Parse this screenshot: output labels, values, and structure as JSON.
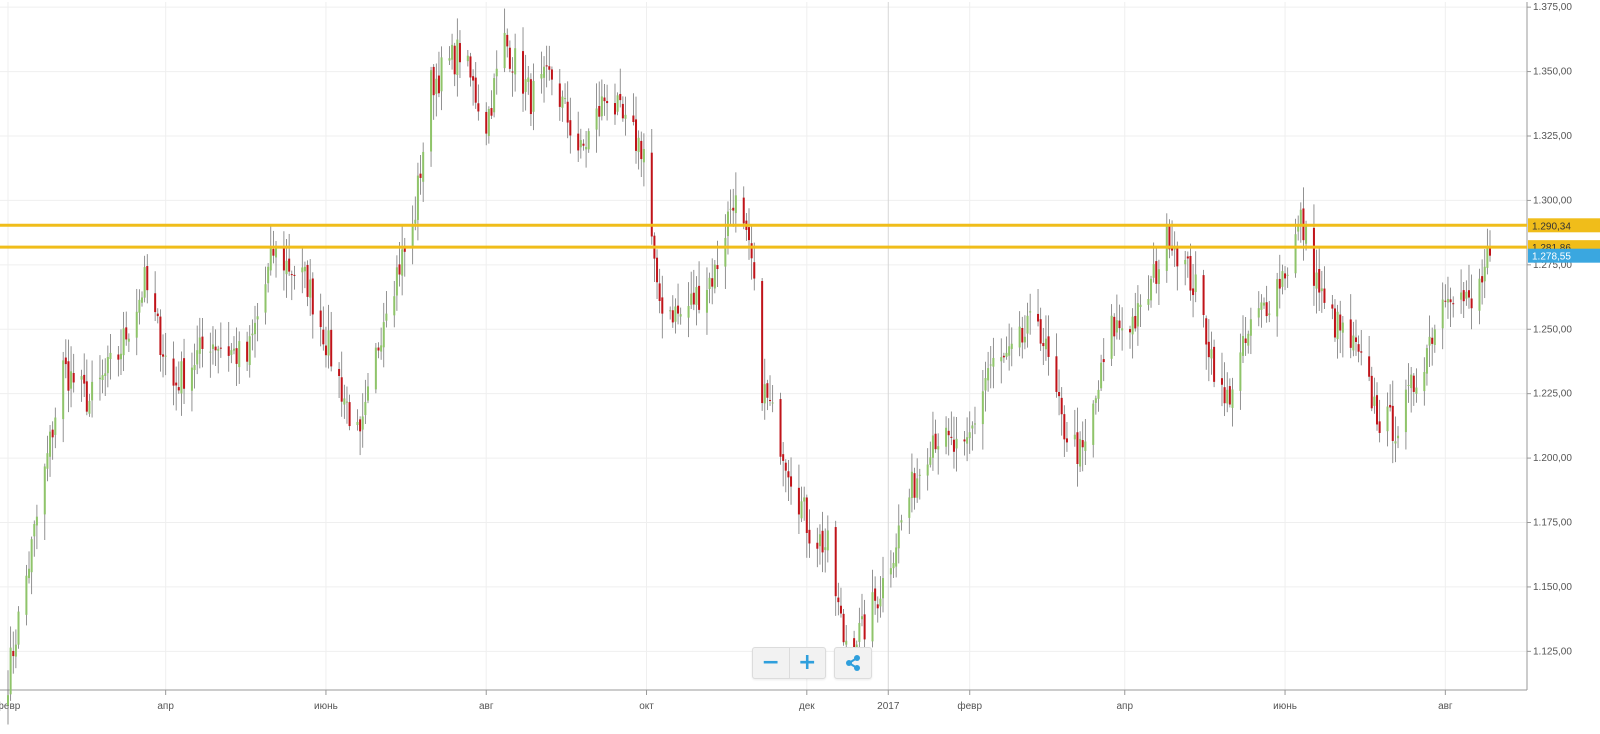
{
  "chart_data": {
    "type": "candlestick",
    "instrument": "",
    "ylim": [
      1110,
      1377
    ],
    "y_ticks": [
      "1.125,00",
      "1.150,00",
      "1.175,00",
      "1.200,00",
      "1.225,00",
      "1.250,00",
      "1.275,00",
      "1.300,00",
      "1.325,00",
      "1.350,00",
      "1.375,00"
    ],
    "y_tick_values": [
      1125,
      1150,
      1175,
      1200,
      1225,
      1250,
      1275,
      1300,
      1325,
      1350,
      1375
    ],
    "x_ticks": [
      "февр",
      "апр",
      "июнь",
      "авг",
      "окт",
      "дек",
      "2017",
      "февр",
      "апр",
      "июнь",
      "авг"
    ],
    "x_range": [
      "2016-02-01",
      "2017-08-18"
    ],
    "grid": true,
    "colors": {
      "up": "#8fc46a",
      "down": "#c0141a",
      "level_line": "#f0bd1a",
      "current_price_tag": "#3aa7e0",
      "grid": "#efefef"
    },
    "horizontal_levels": [
      {
        "value": 1290.34,
        "label": "1.290,34"
      },
      {
        "value": 1281.86,
        "label": "1.281,86"
      }
    ],
    "current_price": {
      "value": 1278.55,
      "label": "1.278,55"
    },
    "close_path": [
      [
        "2016-02-01",
        1115
      ],
      [
        "2016-02-10",
        1165
      ],
      [
        "2016-02-22",
        1235
      ],
      [
        "2016-03-03",
        1222
      ],
      [
        "2016-03-14",
        1240
      ],
      [
        "2016-03-24",
        1268
      ],
      [
        "2016-04-04",
        1228
      ],
      [
        "2016-04-18",
        1246
      ],
      [
        "2016-05-02",
        1238
      ],
      [
        "2016-05-12",
        1280
      ],
      [
        "2016-05-25",
        1268
      ],
      [
        "2016-06-06",
        1230
      ],
      [
        "2016-06-14",
        1205
      ],
      [
        "2016-06-24",
        1262
      ],
      [
        "2016-07-04",
        1288
      ],
      [
        "2016-07-11",
        1345
      ],
      [
        "2016-07-22",
        1358
      ],
      [
        "2016-08-01",
        1330
      ],
      [
        "2016-08-08",
        1362
      ],
      [
        "2016-08-18",
        1340
      ],
      [
        "2016-08-26",
        1348
      ],
      [
        "2016-09-06",
        1318
      ],
      [
        "2016-09-16",
        1342
      ],
      [
        "2016-09-23",
        1328
      ],
      [
        "2016-09-30",
        1320
      ],
      [
        "2016-10-05",
        1262
      ],
      [
        "2016-10-14",
        1255
      ],
      [
        "2016-10-27",
        1272
      ],
      [
        "2016-11-03",
        1302
      ],
      [
        "2016-11-10",
        1275
      ],
      [
        "2016-11-14",
        1228
      ],
      [
        "2016-11-24",
        1198
      ],
      [
        "2016-12-02",
        1172
      ],
      [
        "2016-12-09",
        1165
      ],
      [
        "2016-12-15",
        1130
      ],
      [
        "2016-12-22",
        1132
      ],
      [
        "2016-12-30",
        1152
      ],
      [
        "2017-01-09",
        1185
      ],
      [
        "2017-01-18",
        1210
      ],
      [
        "2017-01-30",
        1200
      ],
      [
        "2017-02-08",
        1235
      ],
      [
        "2017-02-16",
        1238
      ],
      [
        "2017-02-27",
        1255
      ],
      [
        "2017-03-08",
        1213
      ],
      [
        "2017-03-16",
        1200
      ],
      [
        "2017-03-27",
        1250
      ],
      [
        "2017-04-07",
        1255
      ],
      [
        "2017-04-18",
        1288
      ],
      [
        "2017-04-28",
        1265
      ],
      [
        "2017-05-09",
        1220
      ],
      [
        "2017-05-19",
        1250
      ],
      [
        "2017-06-02",
        1275
      ],
      [
        "2017-06-07",
        1292
      ],
      [
        "2017-06-16",
        1258
      ],
      [
        "2017-06-28",
        1241
      ],
      [
        "2017-07-07",
        1215
      ],
      [
        "2017-07-14",
        1212
      ],
      [
        "2017-07-24",
        1240
      ],
      [
        "2017-08-02",
        1268
      ],
      [
        "2017-08-11",
        1258
      ],
      [
        "2017-08-18",
        1278.55
      ]
    ]
  },
  "toolbar": {
    "zoom_out_label": "−",
    "zoom_in_label": "+",
    "share_icon": "share-icon"
  }
}
